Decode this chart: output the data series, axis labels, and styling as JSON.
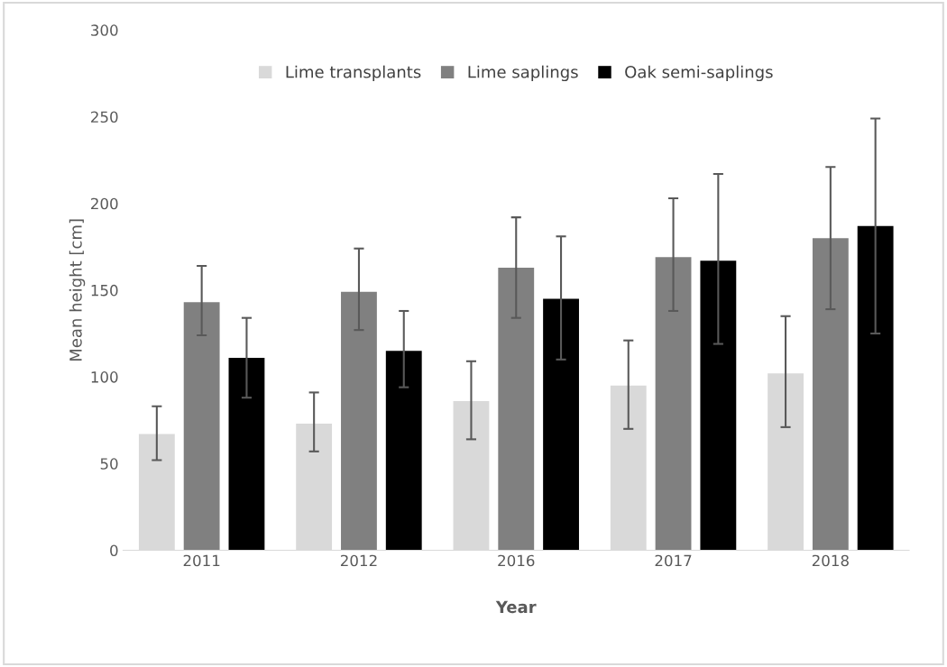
{
  "chart_data": {
    "type": "bar",
    "xlabel": "Year",
    "ylabel": "Mean height [cm]",
    "categories": [
      "2011",
      "2012",
      "2016",
      "2017",
      "2018"
    ],
    "series": [
      {
        "name": "Lime transplants",
        "color": "#d9d9d9",
        "values": [
          67,
          73,
          86,
          95,
          102
        ],
        "errors": [
          [
            52,
            83
          ],
          [
            57,
            91
          ],
          [
            64,
            109
          ],
          [
            70,
            121
          ],
          [
            71,
            135
          ]
        ]
      },
      {
        "name": "Lime saplings",
        "color": "#808080",
        "values": [
          143,
          149,
          163,
          169,
          180
        ],
        "errors": [
          [
            124,
            164
          ],
          [
            127,
            174
          ],
          [
            134,
            192
          ],
          [
            138,
            203
          ],
          [
            139,
            221
          ]
        ]
      },
      {
        "name": "Oak semi-saplings",
        "color": "#000000",
        "values": [
          111,
          115,
          145,
          167,
          187
        ],
        "errors": [
          [
            88,
            134
          ],
          [
            94,
            138
          ],
          [
            110,
            181
          ],
          [
            119,
            217
          ],
          [
            125,
            249
          ]
        ]
      }
    ],
    "ylim": [
      0,
      300
    ],
    "yticks": [
      0,
      50,
      100,
      150,
      200,
      250,
      300
    ],
    "grid": false,
    "legend": "top"
  }
}
